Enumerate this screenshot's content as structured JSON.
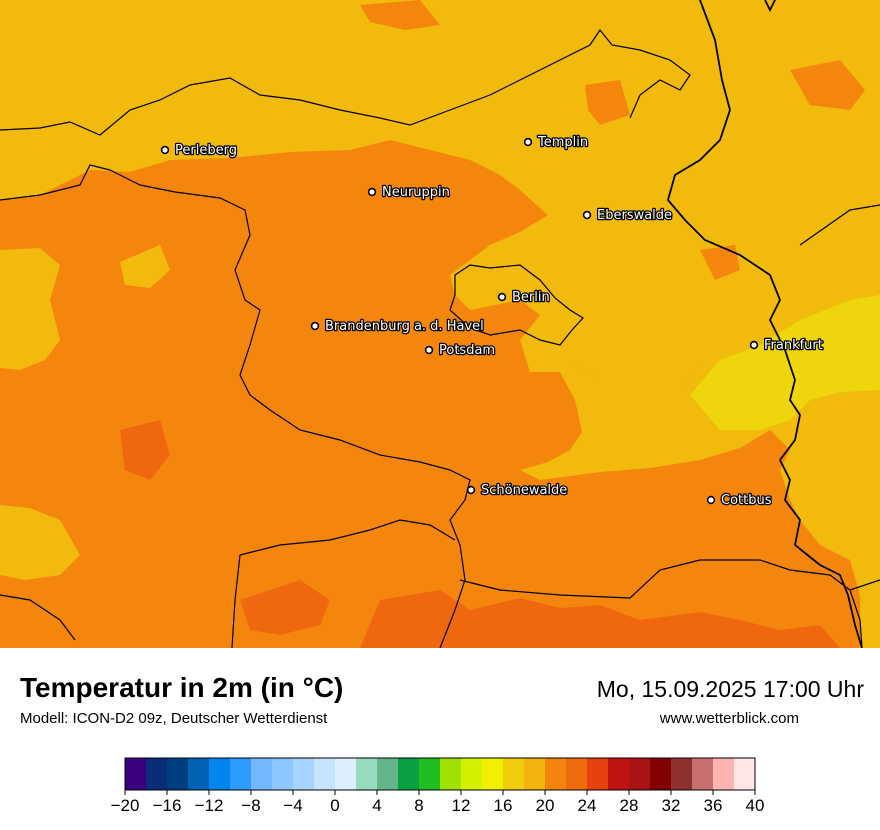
{
  "map": {
    "cities": [
      {
        "name": "Perleberg"
      },
      {
        "name": "Templin"
      },
      {
        "name": "Neuruppin"
      },
      {
        "name": "Eberswalde"
      },
      {
        "name": "Berlin"
      },
      {
        "name": "Brandenburg a. d. Havel"
      },
      {
        "name": "Potsdam"
      },
      {
        "name": "Frankfurt"
      },
      {
        "name": "Schönewalde"
      },
      {
        "name": "Cottbus"
      }
    ],
    "colors": {
      "temp_20_22": "#f2ba0c",
      "temp_22_24": "#f4860e",
      "temp_24_26": "#f0680e",
      "temp_18_20": "#efd60c",
      "border": "#000000"
    }
  },
  "footer": {
    "title": "Temperatur in 2m (in °C)",
    "subtitle": "Modell: ICON-D2 09z, Deutscher Wetterdienst",
    "datetime": "Mo, 15.09.2025 17:00 Uhr",
    "website": "www.wetterblick.com"
  },
  "legend": {
    "min": -20,
    "max": 40,
    "step": 2,
    "colors": [
      "#3a0080",
      "#0a2d7a",
      "#003f7f",
      "#0061b5",
      "#0084f0",
      "#2e9cff",
      "#72b8ff",
      "#8ec6ff",
      "#a6d4ff",
      "#c6e4ff",
      "#dceeff",
      "#98dcc0",
      "#66b48c",
      "#08a040",
      "#20be20",
      "#a0e000",
      "#d2f000",
      "#f0f000",
      "#f0cc0a",
      "#f2b40c",
      "#f4840e",
      "#f06a0e",
      "#e8400e",
      "#c01414",
      "#a81414",
      "#820000",
      "#8c3030",
      "#c87070",
      "#ffb4b4",
      "#ffe6e6"
    ],
    "tick_labels": [
      "−20",
      "−16",
      "−12",
      "−8",
      "−4",
      "0",
      "4",
      "8",
      "12",
      "16",
      "20",
      "24",
      "28",
      "32",
      "36",
      "40"
    ]
  }
}
